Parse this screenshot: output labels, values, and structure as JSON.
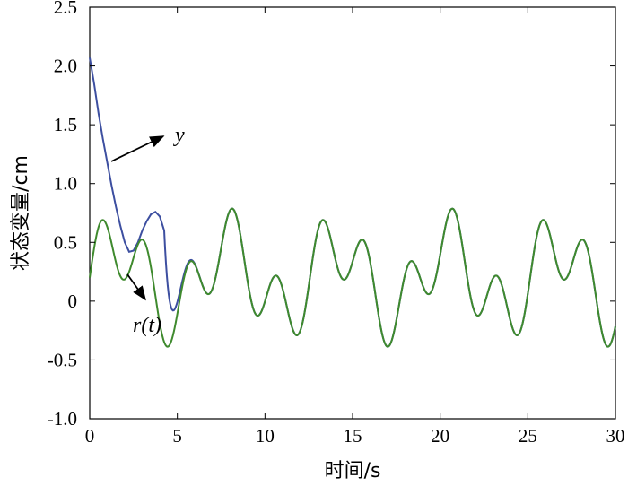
{
  "chart_data": {
    "type": "line",
    "title": "",
    "xlabel": "时间/s",
    "ylabel": "状态变量/cm",
    "xlim": [
      0,
      30
    ],
    "ylim": [
      -1.0,
      2.5
    ],
    "x_ticks": [
      "0",
      "5",
      "10",
      "15",
      "20",
      "25",
      "30"
    ],
    "y_ticks": [
      "-1.0",
      "-0.5",
      "0",
      "0.5",
      "1.0",
      "1.5",
      "2.0",
      "2.5"
    ],
    "grid": false,
    "legend": "none",
    "reference_formula": "r(t) = 0.2 + 0.3 sin(1.0 t) + 0.3 sin(2.5 t)",
    "series": [
      {
        "name": "y",
        "color": "#3d4fa0",
        "x": [
          0,
          0.25,
          0.5,
          0.75,
          1.0,
          1.25,
          1.5,
          1.75,
          2.0,
          2.25,
          2.5,
          2.75,
          3.0,
          3.25,
          3.5,
          3.75,
          4.0,
          4.25
        ],
        "y": [
          2.07,
          1.85,
          1.6,
          1.38,
          1.18,
          0.98,
          0.8,
          0.64,
          0.5,
          0.42,
          0.43,
          0.5,
          0.6,
          0.68,
          0.74,
          0.76,
          0.72,
          0.6
        ]
      },
      {
        "name": "r(t)",
        "color": "#3f8a2e",
        "sample_step": 0.05
      }
    ],
    "annotations": [
      {
        "text": "y",
        "points_to_series": "y"
      },
      {
        "text": "r(t)",
        "points_to_series": "r(t)"
      }
    ]
  }
}
